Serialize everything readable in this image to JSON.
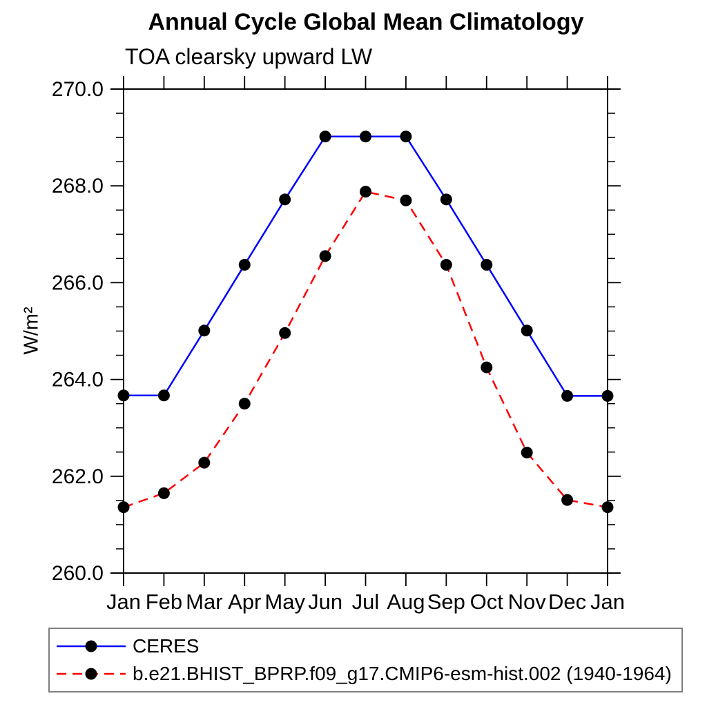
{
  "title": "Annual Cycle Global Mean Climatology",
  "subtitle": "TOA clearsky upward LW",
  "y_axis_label": "W/m²",
  "chart_data": {
    "type": "line",
    "title": "Annual Cycle Global Mean Climatology",
    "subtitle": "TOA clearsky upward LW",
    "ylabel": "W/m²",
    "xlabel": "",
    "ylim": [
      260.0,
      270.0
    ],
    "y_major_tick_step": 2.0,
    "y_minor_tick_step": 0.5,
    "y_tick_labels": [
      "260.0",
      "262.0",
      "264.0",
      "266.0",
      "268.0",
      "270.0"
    ],
    "x_tick_labels": [
      "Jan",
      "Feb",
      "Mar",
      "Apr",
      "May",
      "Jun",
      "Jul",
      "Aug",
      "Sep",
      "Oct",
      "Nov",
      "Dec",
      "Jan"
    ],
    "grid": false,
    "legend_position": "bottom",
    "axis_color": "#000000",
    "series": [
      {
        "name": "CERES",
        "color": "#0000ff",
        "line_style": "solid",
        "marker": "filled-circle",
        "marker_color": "#000000",
        "values": [
          263.67,
          263.67,
          265.01,
          266.37,
          267.72,
          269.02,
          269.02,
          269.02,
          267.72,
          266.37,
          265.01,
          263.66,
          263.66
        ]
      },
      {
        "name": "b.e21.BHIST_BPRP.f09_g17.CMIP6-esm-hist.002 (1940-1964)",
        "color": "#ff0000",
        "line_style": "dashed",
        "marker": "filled-circle",
        "marker_color": "#000000",
        "values": [
          261.36,
          261.65,
          262.28,
          263.5,
          264.96,
          266.55,
          267.88,
          267.7,
          266.37,
          264.25,
          262.49,
          261.51,
          261.36
        ]
      }
    ]
  },
  "legend": {
    "border_color": "#7f7f7f"
  }
}
